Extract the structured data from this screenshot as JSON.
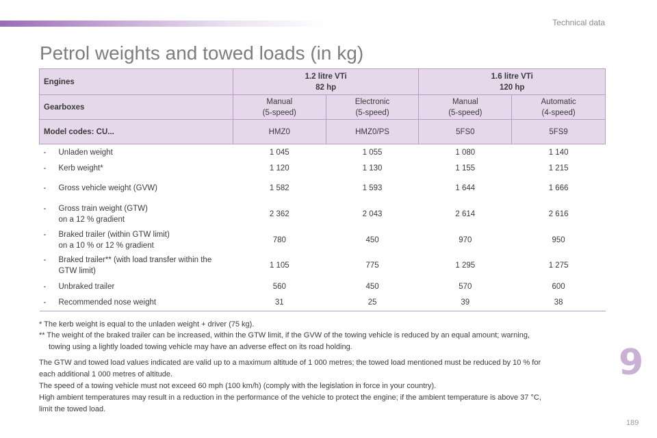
{
  "header": {
    "section": "Technical data"
  },
  "title": "Petrol weights and towed loads (in kg)",
  "table": {
    "engines_label": "Engines",
    "engine_1": [
      "1.2 litre VTi",
      "82 hp"
    ],
    "engine_2": [
      "1.6 litre VTi",
      "120 hp"
    ],
    "gearboxes_label": "Gearboxes",
    "gearboxes": [
      [
        "Manual",
        "(5-speed)"
      ],
      [
        "Electronic",
        "(5-speed)"
      ],
      [
        "Manual",
        "(5-speed)"
      ],
      [
        "Automatic",
        "(4-speed)"
      ]
    ],
    "model_codes_label": "Model codes: CU...",
    "model_codes": [
      "HMZ0",
      "HMZ0/PS",
      "5FS0",
      "5FS9"
    ],
    "rows": [
      {
        "label": [
          "Unladen weight"
        ],
        "values": [
          "1 045",
          "1 055",
          "1 080",
          "1 140"
        ]
      },
      {
        "label": [
          "Kerb weight*"
        ],
        "values": [
          "1 120",
          "1 130",
          "1 155",
          "1 215"
        ]
      },
      {
        "label": [
          "Gross vehicle weight (GVW)"
        ],
        "values": [
          "1 582",
          "1 593",
          "1 644",
          "1 666"
        ]
      },
      {
        "label": [
          "Gross train weight (GTW)",
          "on a 12 % gradient"
        ],
        "values": [
          "2 362",
          "2 043",
          "2 614",
          "2 616"
        ]
      },
      {
        "label": [
          "Braked trailer (within GTW limit)",
          "on a 10 % or 12 % gradient"
        ],
        "values": [
          "780",
          "450",
          "970",
          "950"
        ]
      },
      {
        "label": [
          "Braked trailer** (with load transfer within the",
          "GTW limit)"
        ],
        "values": [
          "1 105",
          "775",
          "1 295",
          "1 275"
        ]
      },
      {
        "label": [
          "Unbraked trailer"
        ],
        "values": [
          "560",
          "450",
          "570",
          "600"
        ]
      },
      {
        "label": [
          "Recommended nose weight"
        ],
        "values": [
          "31",
          "25",
          "39",
          "38"
        ]
      }
    ]
  },
  "footnotes": {
    "note1": "* The kerb weight is equal to the unladen weight + driver (75 kg).",
    "note2_a": "** The weight of the braked trailer can be increased, within the GTW limit, if the GVW of the towing vehicle is reduced by an equal amount; warning,",
    "note2_b": "towing using a lightly loaded towing vehicle may have an adverse effect on its road holding."
  },
  "paragraphs": [
    "The GTW and towed load values indicated are valid up to a maximum altitude of 1 000 metres; the towed load mentioned must be reduced by 10 % for",
    "each additional 1 000 metres of altitude.",
    "The speed of a towing vehicle must not exceed 60 mph (100 km/h) (comply with the legislation in force in your country).",
    "High ambient temperatures may result in a reduction in the performance of the vehicle to protect the engine; if the ambient temperature is above 37 °C,",
    "limit the towed load."
  ],
  "chapter_number": "9",
  "page_number": "189"
}
